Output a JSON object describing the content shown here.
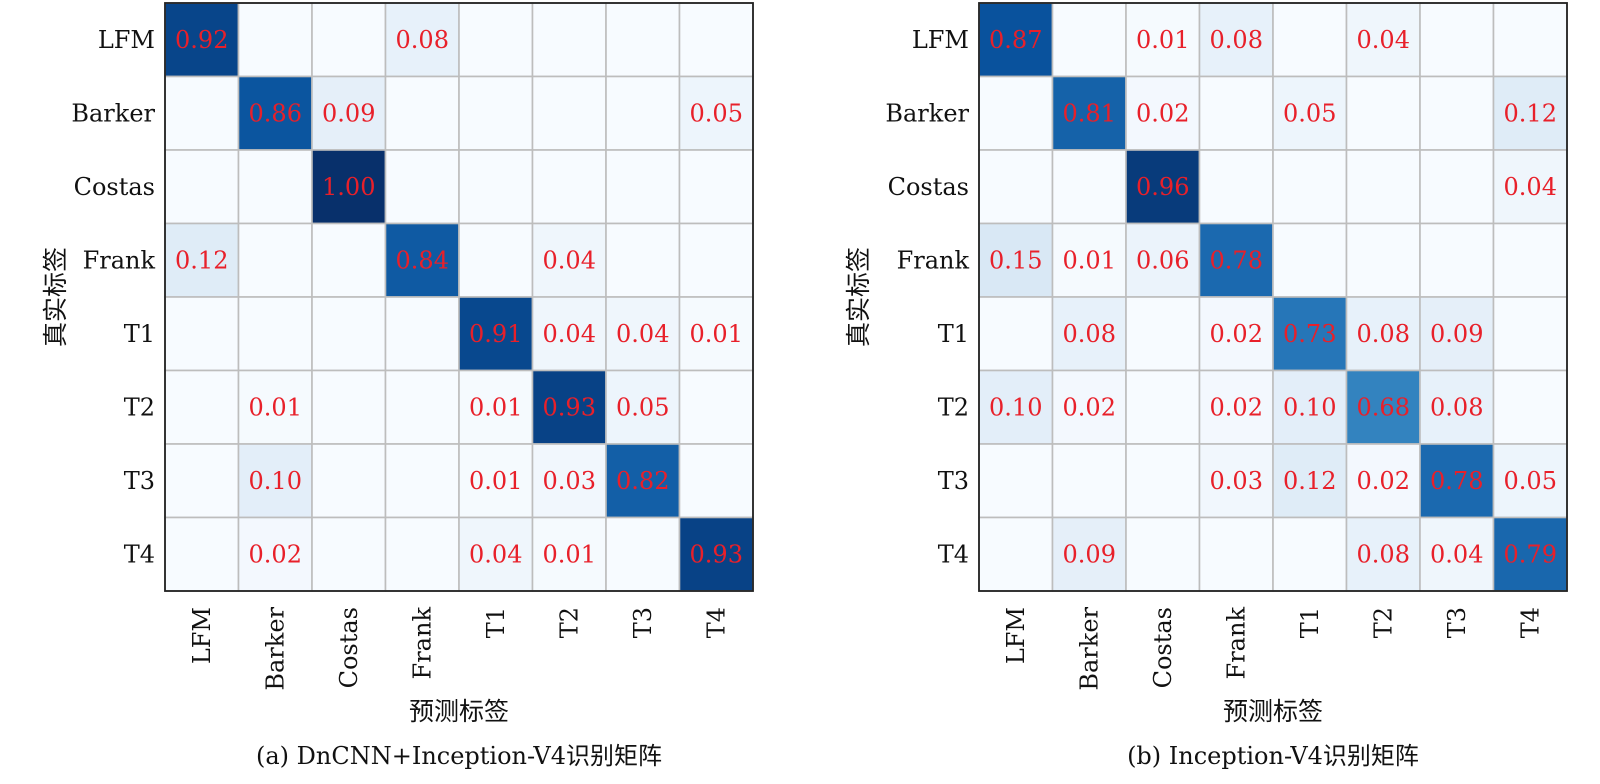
{
  "chart_data": [
    {
      "type": "heatmap",
      "caption": "(a) DnCNN+Inception-V4识别矩阵",
      "xlabel": "预测标签",
      "ylabel": "真实标签",
      "row_labels": [
        "LFM",
        "Barker",
        "Costas",
        "Frank",
        "T1",
        "T2",
        "T3",
        "T4"
      ],
      "col_labels": [
        "LFM",
        "Barker",
        "Costas",
        "Frank",
        "T1",
        "T2",
        "T3",
        "T4"
      ],
      "value_range": [
        0,
        1
      ],
      "colormap": "Blues",
      "annotation_color": "#e8202a",
      "values": [
        [
          0.92,
          0,
          0,
          0.08,
          0,
          0,
          0,
          0
        ],
        [
          0,
          0.86,
          0.09,
          0,
          0,
          0,
          0,
          0.05
        ],
        [
          0,
          0,
          1.0,
          0,
          0,
          0,
          0,
          0
        ],
        [
          0.12,
          0,
          0,
          0.84,
          0,
          0.04,
          0,
          0
        ],
        [
          0,
          0,
          0,
          0,
          0.91,
          0.04,
          0.04,
          0.01
        ],
        [
          0,
          0.01,
          0,
          0,
          0.01,
          0.93,
          0.05,
          0
        ],
        [
          0,
          0.1,
          0,
          0,
          0.01,
          0.03,
          0.82,
          0
        ],
        [
          0,
          0.02,
          0,
          0,
          0.04,
          0.01,
          0,
          0.93
        ]
      ]
    },
    {
      "type": "heatmap",
      "caption": "(b) Inception-V4识别矩阵",
      "xlabel": "预测标签",
      "ylabel": "真实标签",
      "row_labels": [
        "LFM",
        "Barker",
        "Costas",
        "Frank",
        "T1",
        "T2",
        "T3",
        "T4"
      ],
      "col_labels": [
        "LFM",
        "Barker",
        "Costas",
        "Frank",
        "T1",
        "T2",
        "T3",
        "T4"
      ],
      "value_range": [
        0,
        1
      ],
      "colormap": "Blues",
      "annotation_color": "#e8202a",
      "values": [
        [
          0.87,
          0,
          0.01,
          0.08,
          0,
          0.04,
          0,
          0
        ],
        [
          0,
          0.81,
          0.02,
          0,
          0.05,
          0,
          0,
          0.12
        ],
        [
          0,
          0,
          0.96,
          0,
          0,
          0,
          0,
          0.04
        ],
        [
          0.15,
          0.01,
          0.06,
          0.78,
          0,
          0,
          0,
          0
        ],
        [
          0,
          0.08,
          0,
          0.02,
          0.73,
          0.08,
          0.09,
          0
        ],
        [
          0.1,
          0.02,
          0,
          0.02,
          0.1,
          0.68,
          0.08,
          0
        ],
        [
          0,
          0,
          0,
          0.03,
          0.12,
          0.02,
          0.78,
          0.05
        ],
        [
          0,
          0.09,
          0,
          0,
          0,
          0.08,
          0.04,
          0.79
        ]
      ]
    }
  ]
}
